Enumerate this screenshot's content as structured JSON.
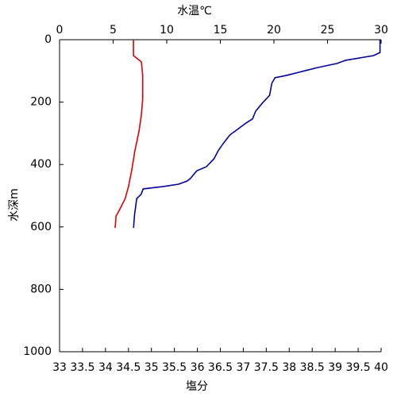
{
  "chart_data": {
    "type": "line",
    "xlabel": "塩分",
    "xlabel_color": "#cc0000",
    "x2label": "水温℃",
    "x2label_color": "#0000cc",
    "ylabel": "水深m",
    "xlim": [
      33,
      40
    ],
    "xticks": [
      33,
      33.5,
      34,
      34.5,
      35,
      35.5,
      36,
      36.5,
      37,
      37.5,
      38,
      38.5,
      39,
      39.5,
      40
    ],
    "x2lim": [
      0,
      30
    ],
    "x2ticks": [
      0,
      5,
      10,
      15,
      20,
      25,
      30
    ],
    "ylim": [
      0,
      1000
    ],
    "yticks": [
      0,
      200,
      400,
      600,
      800,
      1000
    ],
    "y_inverted": true,
    "series": [
      {
        "color": "#0000a0",
        "axis": "x2",
        "x": [
          29.9,
          29.9,
          29.3,
          26.7,
          25.9,
          24.1,
          22.6,
          21.1,
          20.1,
          19.8,
          19.6,
          18.9,
          18.3,
          18.0,
          17.4,
          16.7,
          15.9,
          15.3,
          14.8,
          14.4,
          13.7,
          12.8,
          12.2,
          11.9,
          11.1,
          9.6,
          7.8,
          7.6,
          7.2,
          7.0,
          6.9
        ],
        "y": [
          0,
          41,
          51,
          66,
          76,
          89,
          102,
          115,
          122,
          140,
          178,
          204,
          229,
          254,
          267,
          285,
          305,
          331,
          356,
          382,
          407,
          420,
          445,
          453,
          463,
          471,
          478,
          496,
          509,
          560,
          603
        ]
      },
      {
        "color": "#dd0000",
        "axis": "x",
        "x": [
          34.61,
          34.61,
          34.78,
          34.81,
          34.81,
          34.78,
          34.73,
          34.64,
          34.57,
          34.5,
          34.43,
          34.3,
          34.23,
          34.21
        ],
        "y": [
          0,
          51,
          71,
          114,
          191,
          242,
          293,
          356,
          420,
          471,
          509,
          547,
          565,
          603
        ]
      }
    ]
  }
}
